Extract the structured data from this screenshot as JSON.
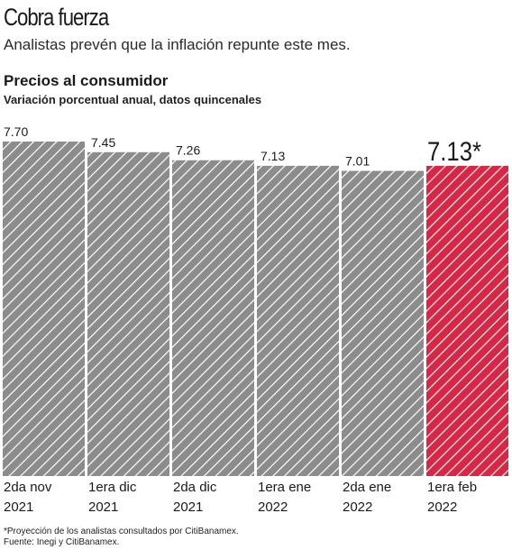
{
  "header": {
    "headline": "Cobra fuerza",
    "dek": "Analistas prevén que la inflación repunte este mes."
  },
  "colors": {
    "bar": "#8c8c8c",
    "highlight": "#d92645",
    "hatch": "#ffffff"
  },
  "chart_data": {
    "type": "bar",
    "title": "Precios al consumidor",
    "subtitle": "Variación porcentual anual, datos quincenales",
    "categories": [
      {
        "line1": "2da nov",
        "line2": "2021"
      },
      {
        "line1": "1era dic",
        "line2": "2021"
      },
      {
        "line1": "2da dic",
        "line2": "2021"
      },
      {
        "line1": "1era ene",
        "line2": "2022"
      },
      {
        "line1": "2da ene",
        "line2": "2022"
      },
      {
        "line1": "1era feb",
        "line2": "2022"
      }
    ],
    "values": [
      7.7,
      7.45,
      7.26,
      7.13,
      7.01,
      7.13
    ],
    "value_labels": [
      "7.70",
      "7.45",
      "7.26",
      "7.13",
      "7.01",
      "7.13*"
    ],
    "highlight_index": 5,
    "hatched": true,
    "grid": false,
    "legend": "none"
  },
  "footnotes": {
    "note": "*Proyección de los analistas consultados por CitiBanamex.",
    "source": "Fuente: Inegi y CitiBanamex."
  }
}
